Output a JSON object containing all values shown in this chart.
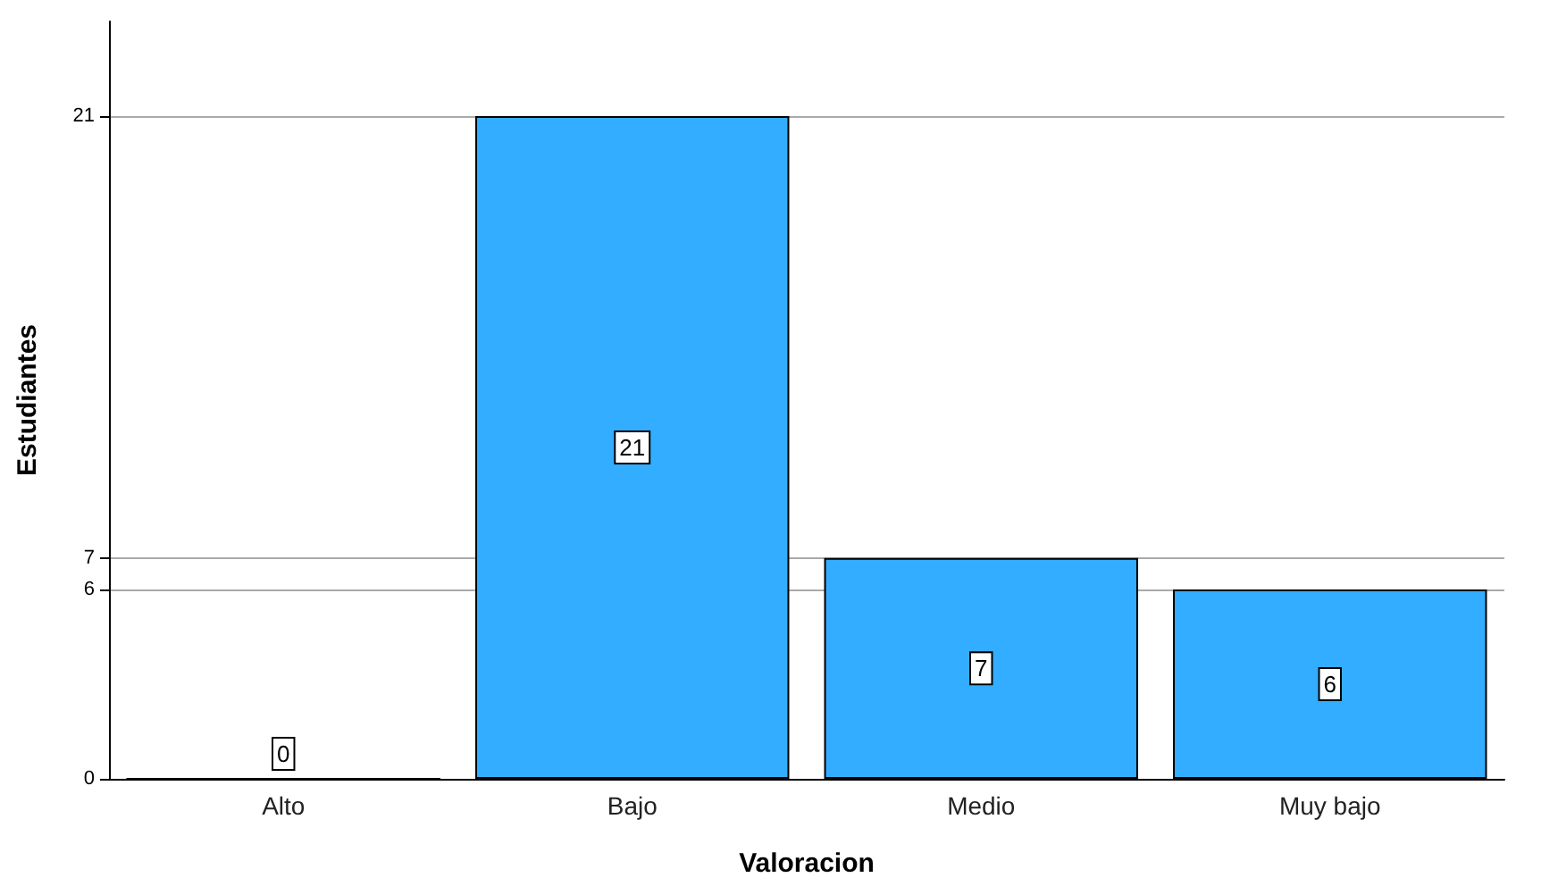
{
  "chart_data": {
    "type": "bar",
    "xlabel": "Valoracion",
    "ylabel": "Estudiantes",
    "categories": [
      "Alto",
      "Bajo",
      "Medio",
      "Muy bajo"
    ],
    "values": [
      0,
      21,
      7,
      6
    ],
    "color": "#33adff",
    "ylim": [
      0,
      24
    ],
    "yticks": [
      0,
      6,
      7,
      21
    ],
    "grid": "y",
    "data_labels": true
  }
}
